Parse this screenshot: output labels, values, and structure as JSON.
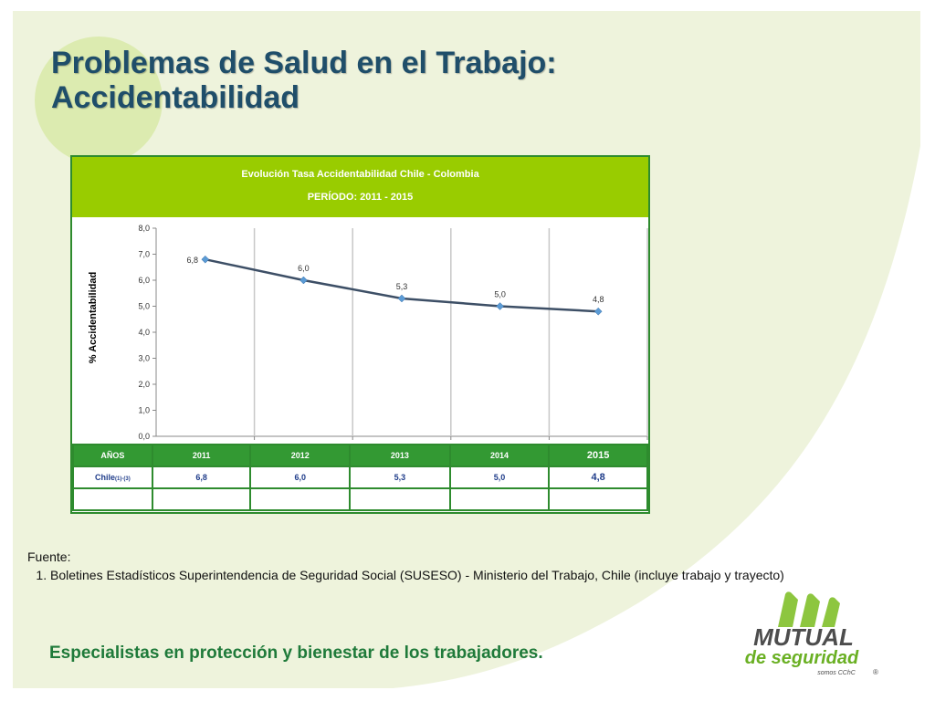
{
  "slide": {
    "title_line1": "Problemas de Salud en el Trabajo:",
    "title_line2": "Accidentabilidad",
    "source_heading": "Fuente:",
    "source_items": [
      "Boletines Estadísticos Superintendencia de Seguridad Social  (SUSESO) - Ministerio del Trabajo, Chile (incluye trabajo y trayecto)"
    ],
    "tagline": "Especialistas en protección y bienestar de los trabajadores.",
    "logo": {
      "line1": "MUTUAL",
      "line2": "de seguridad",
      "line3": "somos CChC",
      "mark": "®"
    }
  },
  "colors": {
    "title": "#1f4e6a",
    "header_green": "#99cc00",
    "table_green": "#339933",
    "line": "#3d4f66",
    "marker": "#5b9bd5",
    "tagline": "#1f7a3a",
    "table_text": "#1f3c8a"
  },
  "chart_data": {
    "type": "line",
    "title": "Evolución Tasa Accidentabilidad   Chile - Colombia",
    "subtitle": "PERÍODO: 2011 - 2015",
    "ylabel": "% Accidentabilidad",
    "ylim": [
      0,
      8
    ],
    "yticks": [
      "0,0",
      "1,0",
      "2,0",
      "3,0",
      "4,0",
      "5,0",
      "6,0",
      "7,0",
      "8,0"
    ],
    "categories": [
      "2011",
      "2012",
      "2013",
      "2014",
      "2015"
    ],
    "series": [
      {
        "values": [
          6.8,
          6.0,
          5.3,
          5.0,
          4.8
        ],
        "labels": [
          "6,8",
          "6,0",
          "5,3",
          "5,0",
          "4,8"
        ]
      }
    ],
    "grid": "vertical",
    "table": {
      "header_label": "AÑOS",
      "row_label": "Chile",
      "row_label_sub": "(1)-(3)",
      "row_values": [
        "6,8",
        "6,0",
        "5,3",
        "5,0",
        "4,8"
      ]
    }
  }
}
